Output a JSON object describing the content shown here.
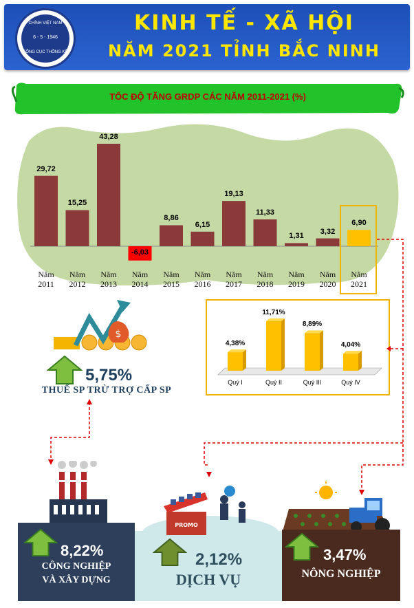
{
  "header": {
    "title_line1": "KINH TẾ - XÃ HỘI",
    "title_line2": "NĂM 2021 TỈNH BẮC NINH",
    "logo_text_top": "CHÍNH VIỆT NAM",
    "logo_text_mid": "6 - 5 - 1946",
    "logo_text_bottom": "TỔNG CỤC THỐNG KÊ"
  },
  "banner": {
    "title": "TỐC ĐỘ TĂNG GRDP CÁC NĂM 2011-2021 (%)"
  },
  "chart_data": [
    {
      "type": "bar",
      "title": "TỐC ĐỘ TĂNG GRDP CÁC NĂM 2011-2021 (%)",
      "categories": [
        "Năm 2011",
        "Năm 2012",
        "Năm 2013",
        "Năm 2014",
        "Năm 2015",
        "Năm 2016",
        "Năm 2017",
        "Năm 2018",
        "Năm 2019",
        "Năm 2020",
        "Năm 2021"
      ],
      "values": [
        29.72,
        15.25,
        43.28,
        -6.03,
        8.86,
        6.15,
        19.13,
        11.33,
        1.31,
        3.32,
        6.9
      ],
      "value_labels": [
        "29,72",
        "15,25",
        "43,28",
        "-6,03",
        "8,86",
        "6,15",
        "19,13",
        "11,33",
        "1,31",
        "3,32",
        "6,90"
      ],
      "colors": {
        "default": "#8b3a3a",
        "highlight": "#ffc000",
        "negative": "#ff0000"
      },
      "highlight_category": "Năm 2021"
    },
    {
      "type": "bar",
      "categories": [
        "Quý I",
        "Quý II",
        "Quý III",
        "Quý IV"
      ],
      "values": [
        4.38,
        11.71,
        8.89,
        4.04
      ],
      "value_labels": [
        "4,38%",
        "11,71%",
        "8,89%",
        "4,04%"
      ],
      "color": "#ffc000"
    }
  ],
  "tax": {
    "value": "5,75%",
    "label": "THUẾ SP TRỪ TRỢ CẤP  SP"
  },
  "industry": {
    "value": "8,22%",
    "label_line1": "CÔNG NGHIỆP",
    "label_line2": "VÀ XÂY DỰNG"
  },
  "service": {
    "value": "2,12%",
    "label": "DỊCH VỤ",
    "promo": "PROMO"
  },
  "agriculture": {
    "value": "3,47%",
    "label": "NÔNG NGHIỆP"
  }
}
